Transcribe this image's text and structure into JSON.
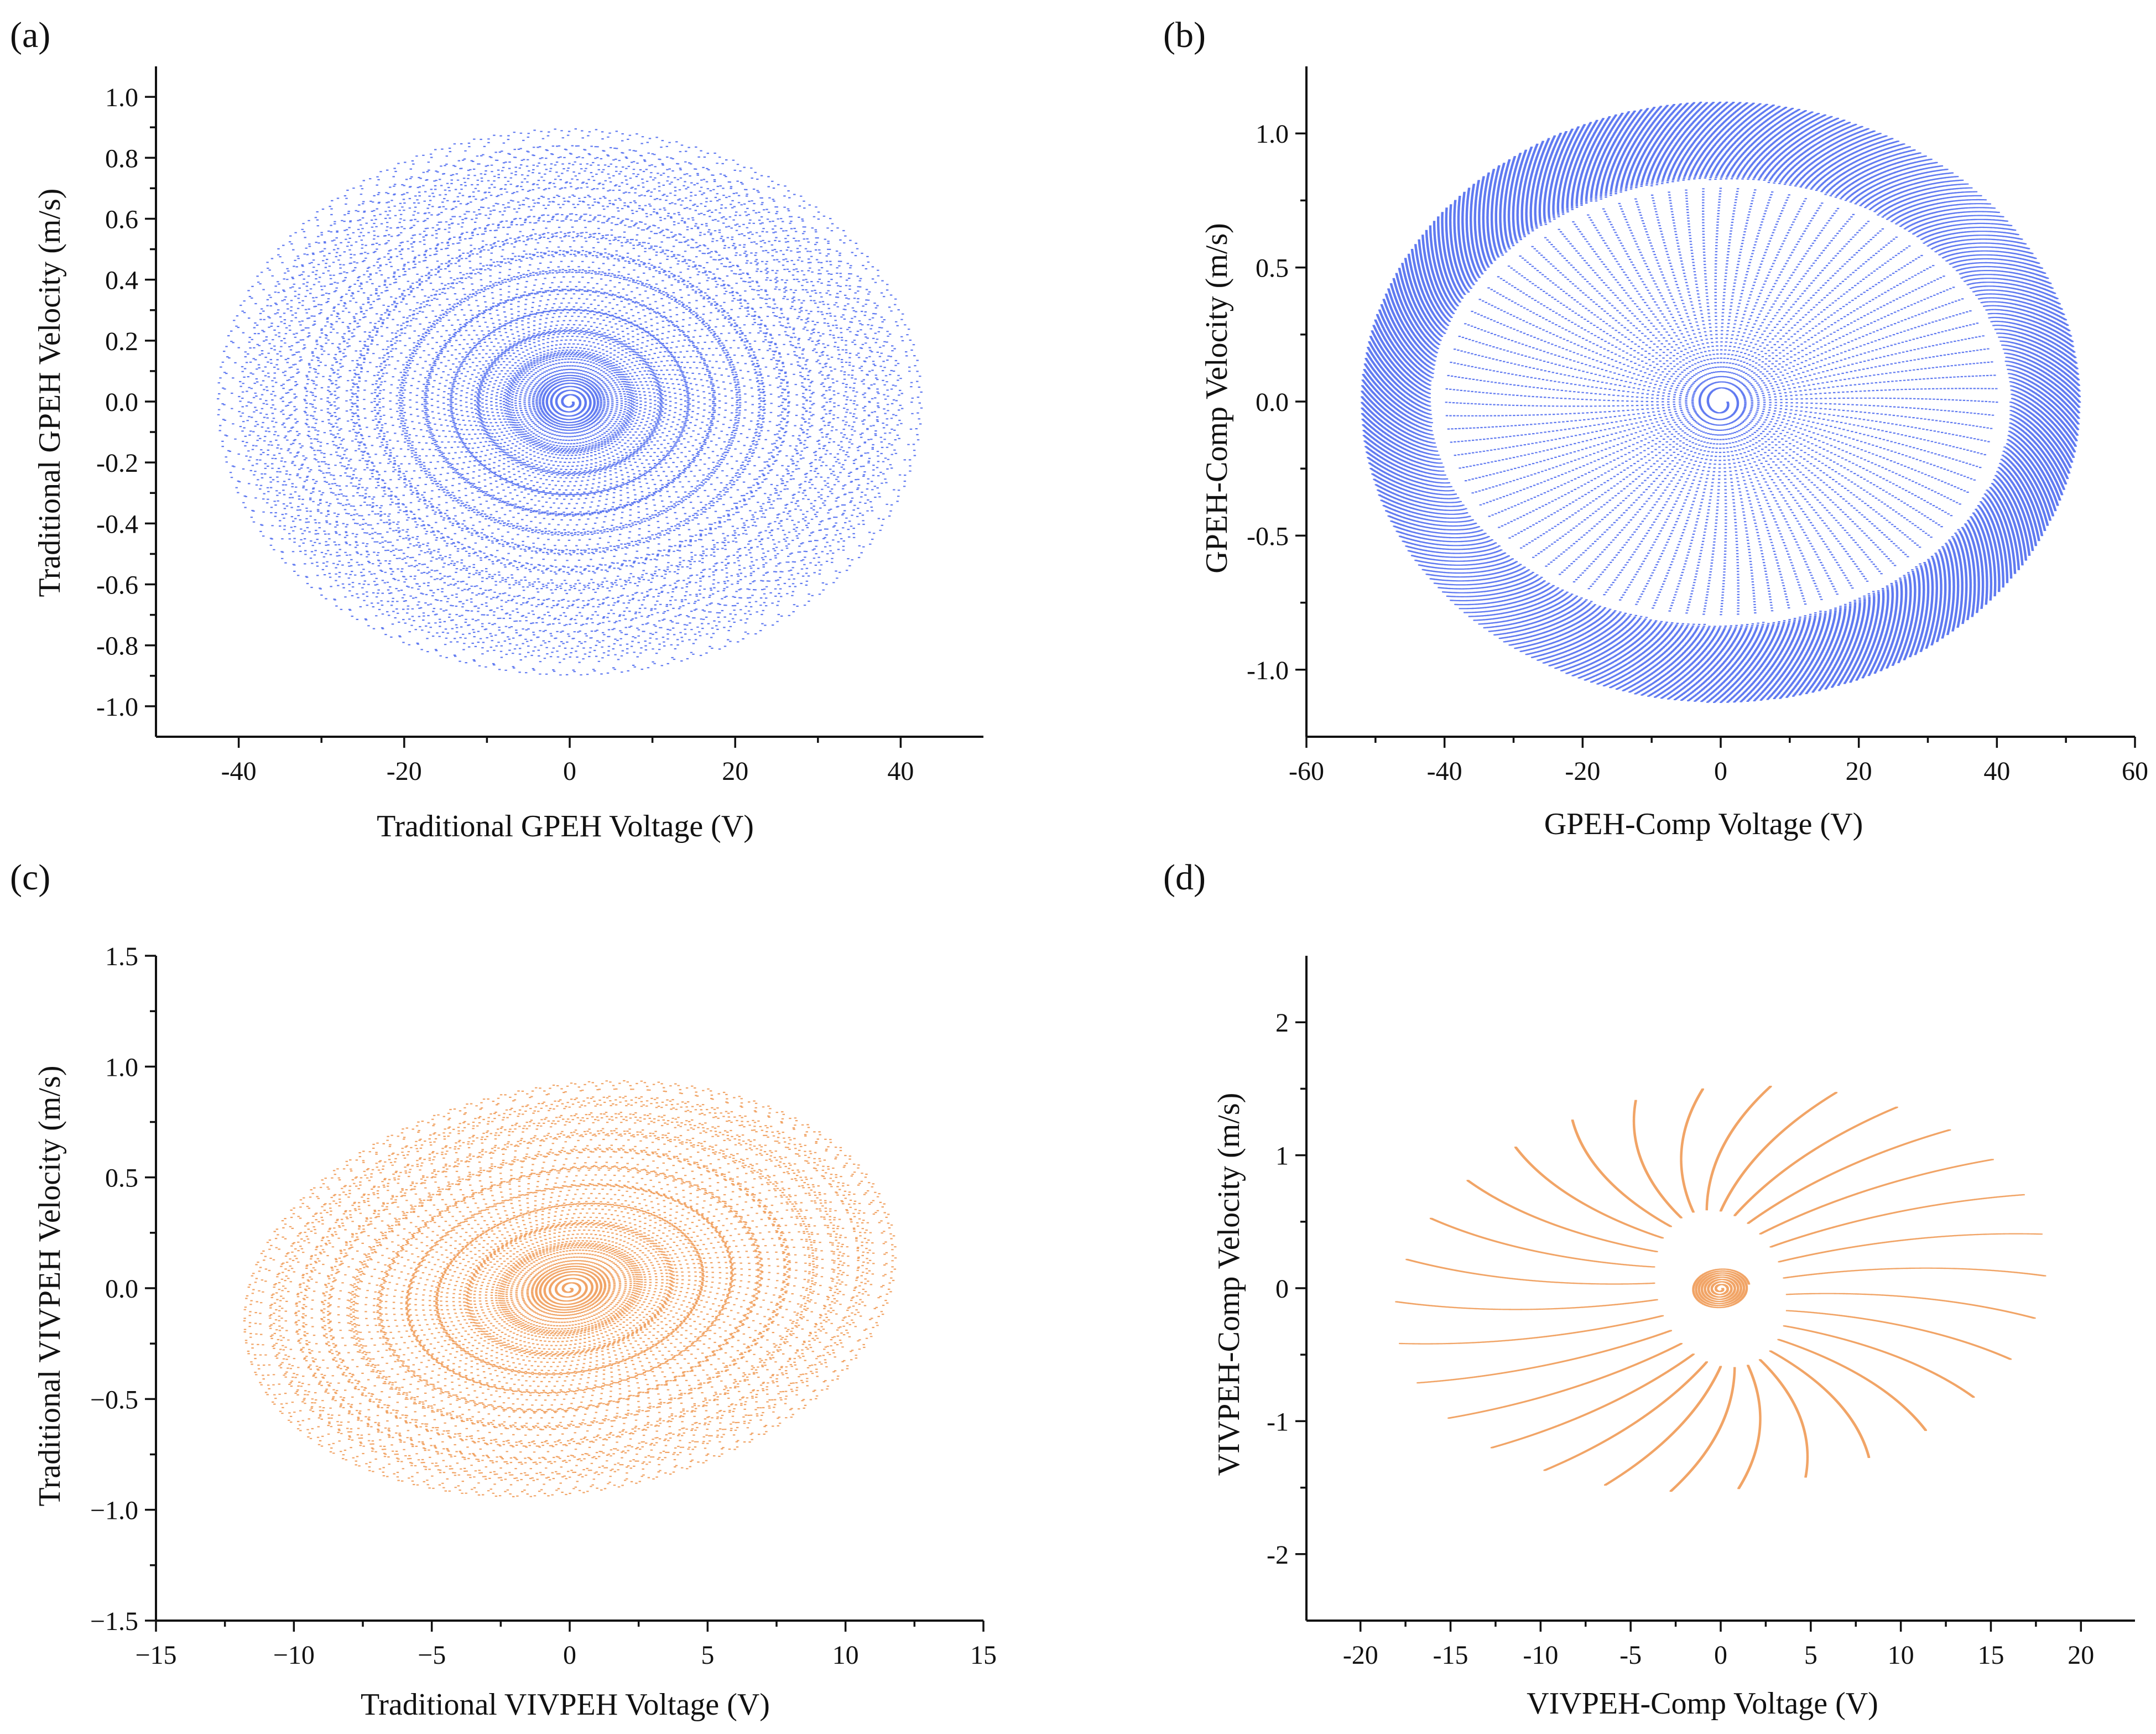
{
  "figure": {
    "colors": {
      "blue": "#4f6bf0",
      "orange": "#f09a55"
    }
  },
  "chart_data": [
    {
      "panel_label": "(a)",
      "type": "scatter",
      "subtype": "phase-portrait spiral",
      "xlabel": "Traditional GPEH Voltage (V)",
      "ylabel": "Traditional GPEH Velocity (m/s)",
      "xlim": [
        -50,
        50
      ],
      "ylim": [
        -1.1,
        1.1
      ],
      "xticks": [
        -40,
        -20,
        0,
        20,
        40
      ],
      "xtick_labels": [
        "-40",
        "-20",
        "0",
        "20",
        "40"
      ],
      "yticks": [
        -1.0,
        -0.8,
        -0.6,
        -0.4,
        -0.2,
        0.0,
        0.2,
        0.4,
        0.6,
        0.8,
        1.0
      ],
      "ytick_labels": [
        "-1.0",
        "-0.8",
        "-0.6",
        "-0.4",
        "-0.2",
        "0.0",
        "0.2",
        "0.4",
        "0.6",
        "0.8",
        "1.0"
      ],
      "color": "blue",
      "series": [
        {
          "name": "trajectory",
          "x_amplitude_start": 0.4,
          "x_amplitude_end": 41.5,
          "y_amplitude_start": 0.01,
          "y_amplitude_end": 0.875,
          "center": [
            0,
            0
          ],
          "tilt_deg": 0,
          "inner_hole": [
            0.6,
            0.012
          ],
          "shape": "spiral growing to steady ellipse",
          "points": 14000,
          "wave_freq": 1.1,
          "turns": 130,
          "dot_radius": 2.2
        }
      ]
    },
    {
      "panel_label": "(b)",
      "type": "scatter",
      "subtype": "phase-portrait spiral with dense outer band",
      "xlabel": "GPEH-Comp Voltage (V)",
      "ylabel": "GPEH-Comp Velocity (m/s)",
      "xlim": [
        -60,
        60
      ],
      "ylim": [
        -1.25,
        1.25
      ],
      "xticks": [
        -60,
        -40,
        -20,
        0,
        20,
        40,
        60
      ],
      "xtick_labels": [
        "-60",
        "-40",
        "-20",
        "0",
        "20",
        "40",
        "60"
      ],
      "yticks": [
        -1.0,
        -0.5,
        0.0,
        0.5,
        1.0
      ],
      "ytick_labels": [
        "-1.0",
        "-0.5",
        "0.0",
        "0.5",
        "1.0"
      ],
      "color": "blue",
      "series": [
        {
          "name": "transient",
          "x_amplitude_start": 1,
          "x_amplitude_end": 40,
          "y_amplitude_start": 0.03,
          "y_amplitude_end": 0.8,
          "center": [
            0,
            0
          ],
          "tilt_deg": 0,
          "inner_hole": [
            0,
            0
          ],
          "shape": "sparse growing spiral",
          "points": 6000,
          "wave_freq": 0,
          "turns": 60,
          "dot_radius": 2.2
        },
        {
          "name": "steady band",
          "x_amplitude_start": 42,
          "x_amplitude_end": 52,
          "y_amplitude_start": 0.83,
          "y_amplitude_end": 1.12,
          "center": [
            0,
            0
          ],
          "tilt_deg": 0,
          "inner_hole": [
            0,
            0
          ],
          "shape": "dense elliptical band",
          "points": 34000,
          "wave_freq": 0,
          "turns": 1100,
          "dot_radius": 2.2
        }
      ]
    },
    {
      "panel_label": "(c)",
      "type": "scatter",
      "subtype": "phase-portrait spiral",
      "xlabel": "Traditional VIVPEH Voltage (V)",
      "ylabel": "Traditional VIVPEH Velocity (m/s)",
      "xlim": [
        -15,
        15
      ],
      "ylim": [
        -1.5,
        1.5
      ],
      "xticks": [
        -15,
        -10,
        -5,
        0,
        5,
        10,
        15
      ],
      "xtick_labels": [
        "−15",
        "−10",
        "−5",
        "0",
        "5",
        "10",
        "15"
      ],
      "yticks": [
        -1.5,
        -1.0,
        -0.5,
        0.0,
        0.5,
        1.0,
        1.5
      ],
      "ytick_labels": [
        "−1.5",
        "−1.0",
        "−0.5",
        "0.0",
        "0.5",
        "1.0",
        "1.5"
      ],
      "color": "orange",
      "series": [
        {
          "name": "trajectory",
          "x_amplitude_start": 0.05,
          "x_amplitude_end": 11.9,
          "y_amplitude_start": 0.006,
          "y_amplitude_end": 0.9,
          "center": [
            0,
            0
          ],
          "tilt_deg": 17,
          "inner_hole": [
            0,
            0
          ],
          "shape": "spiral growing to tilted ellipse",
          "points": 11000,
          "wave_freq": 0.9,
          "turns": 95,
          "dot_radius": 2.2
        }
      ]
    },
    {
      "panel_label": "(d)",
      "type": "scatter",
      "subtype": "phase-portrait spiral with dense outer band",
      "xlabel": "VIVPEH-Comp Voltage (V)",
      "ylabel": "VIVPEH-Comp Velocity (m/s)",
      "xlim": [
        -23,
        23
      ],
      "ylim": [
        -2.5,
        2.5
      ],
      "xticks": [
        -20,
        -15,
        -10,
        -5,
        0,
        5,
        10,
        15,
        20
      ],
      "xtick_labels": [
        "-20",
        "-15",
        "-10",
        "-5",
        "0",
        "5",
        "10",
        "15",
        "20"
      ],
      "yticks": [
        -2,
        -1,
        0,
        1,
        2
      ],
      "ytick_labels": [
        "-2",
        "-1",
        "0",
        "1",
        "2"
      ],
      "color": "orange",
      "series": [
        {
          "name": "transient",
          "x_amplitude_start": 0.1,
          "x_amplitude_end": 1.6,
          "y_amplitude_start": 0.01,
          "y_amplitude_end": 0.15,
          "center": [
            0,
            0
          ],
          "tilt_deg": 12,
          "inner_hole": [
            0,
            0
          ],
          "shape": "small inner spiral",
          "points": 1500,
          "wave_freq": 0,
          "turns": 8,
          "dot_radius": 2.2
        },
        {
          "name": "steady band",
          "x_amplitude_start": 3.6,
          "x_amplitude_end": 18.2,
          "y_amplitude_start": 0.6,
          "y_amplitude_end": 1.5,
          "center": [
            0,
            0
          ],
          "tilt_deg": 12,
          "inner_hole": [
            0,
            0
          ],
          "shape": "dense tilted elliptical band",
          "points": 42000,
          "wave_freq": 0,
          "turns": 1400,
          "dot_radius": 2.2
        }
      ]
    }
  ]
}
